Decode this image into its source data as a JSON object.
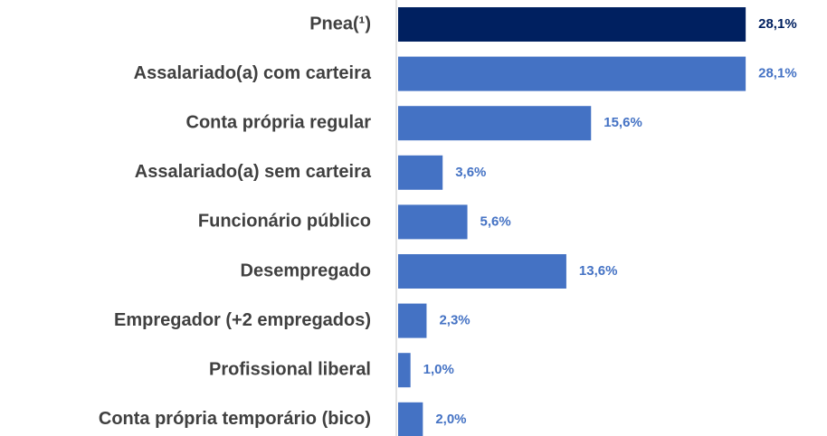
{
  "chart_data": {
    "type": "bar",
    "orientation": "horizontal",
    "categories": [
      "Pnea(¹)",
      "Assalariado(a) com carteira",
      "Conta própria regular",
      "Assalariado(a) sem carteira",
      "Funcionário público",
      "Desempregado",
      "Empregador (+2 empregados)",
      "Profissional liberal",
      "Conta própria temporário (bico)"
    ],
    "values": [
      28.1,
      28.1,
      15.6,
      3.6,
      5.6,
      13.6,
      2.3,
      1.0,
      2.0
    ],
    "value_labels": [
      "28,1%",
      "28,1%",
      "15,6%",
      "3,6%",
      "5,6%",
      "13,6%",
      "2,3%",
      "1,0%",
      "2,0%"
    ],
    "colors": [
      "#002060",
      "#4472c4",
      "#4472c4",
      "#4472c4",
      "#4472c4",
      "#4472c4",
      "#4472c4",
      "#4472c4",
      "#4472c4"
    ]
  }
}
